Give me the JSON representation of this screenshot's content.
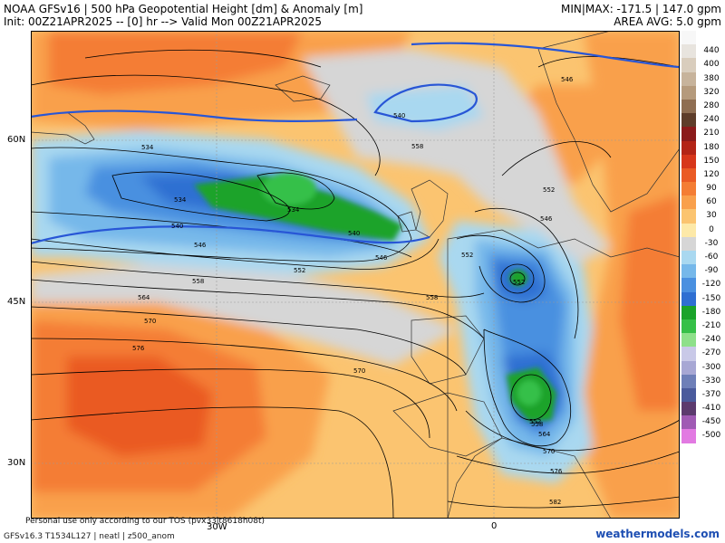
{
  "header": {
    "title": "NOAA GFSv16 | 500 hPa Geopotential Height [dm] & Anomaly [m]",
    "init": "Init: 00Z21APR2025 -- [0] hr --> Valid Mon 00Z21APR2025",
    "minmax": "MIN|MAX: -171.5 | 147.0 gpm",
    "area_avg": "AREA AVG: 5.0 gpm"
  },
  "axes": {
    "lat_labels": [
      "60N",
      "45N",
      "30N"
    ],
    "lon_labels": [
      "30W",
      "0"
    ]
  },
  "contours": {
    "labels": [
      "534",
      "534",
      "534",
      "540",
      "540",
      "540",
      "546",
      "546",
      "546",
      "546",
      "552",
      "552",
      "552",
      "552",
      "552",
      "558",
      "558",
      "558",
      "558",
      "564",
      "564",
      "570",
      "570",
      "570",
      "576",
      "576",
      "582"
    ]
  },
  "legend": {
    "items": [
      {
        "label": "",
        "color": "#f7f7f7"
      },
      {
        "label": "440",
        "color": "#e8e4de"
      },
      {
        "label": "400",
        "color": "#d9cdbd"
      },
      {
        "label": "380",
        "color": "#c7b39b"
      },
      {
        "label": "320",
        "color": "#b59a7c"
      },
      {
        "label": "280",
        "color": "#8f6e52"
      },
      {
        "label": "240",
        "color": "#5e3d2a"
      },
      {
        "label": "210",
        "color": "#8b1a1a"
      },
      {
        "label": "180",
        "color": "#b32416"
      },
      {
        "label": "150",
        "color": "#d7361a"
      },
      {
        "label": "120",
        "color": "#ea5a24"
      },
      {
        "label": "90",
        "color": "#f47d34"
      },
      {
        "label": "60",
        "color": "#f9a04c"
      },
      {
        "label": "30",
        "color": "#fbc470"
      },
      {
        "label": "0",
        "color": "#fde9a8"
      },
      {
        "label": "-30",
        "color": "#d6d6d6"
      },
      {
        "label": "-60",
        "color": "#a9d8f0"
      },
      {
        "label": "-90",
        "color": "#76b8ea"
      },
      {
        "label": "-120",
        "color": "#4a90e0"
      },
      {
        "label": "-150",
        "color": "#2f6fd2"
      },
      {
        "label": "-180",
        "color": "#1aa32a"
      },
      {
        "label": "-210",
        "color": "#36c048"
      },
      {
        "label": "-240",
        "color": "#8ee08a"
      },
      {
        "label": "-270",
        "color": "#c9c9e8"
      },
      {
        "label": "-300",
        "color": "#a7a7d4"
      },
      {
        "label": "-330",
        "color": "#6e7fb8"
      },
      {
        "label": "-370",
        "color": "#4a5a9c"
      },
      {
        "label": "-410",
        "color": "#5c3a6e"
      },
      {
        "label": "-450",
        "color": "#a05ab4"
      },
      {
        "label": "-500",
        "color": "#e27ae2"
      }
    ]
  },
  "footer": {
    "model_info": "GFSv16.3 T1534L127 | neatl | z500_anom",
    "disclaimer": "Personal use only according to our TOS (pvx33jt8618h08t)",
    "brand": "weathermodels.com"
  }
}
